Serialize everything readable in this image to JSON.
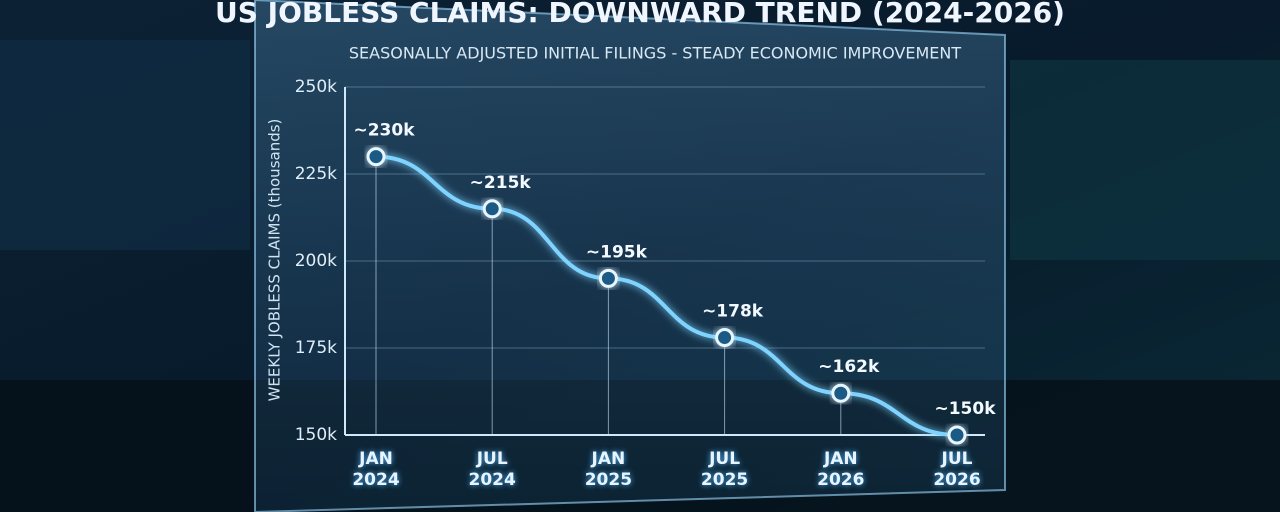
{
  "chart_data": {
    "type": "line",
    "title": "US JOBLESS CLAIMS: DOWNWARD TREND (2024-2026)",
    "subtitle": "SEASONALLY ADJUSTED INITIAL FILINGS - STEADY ECONOMIC IMPROVEMENT",
    "y_label": "WEEKLY JOBLESS CLAIMS (thousands)",
    "categories": [
      "JAN 2024",
      "JUL 2024",
      "JAN 2025",
      "JUL 2025",
      "JAN 2026",
      "JUL 2026"
    ],
    "values": [
      230,
      215,
      195,
      178,
      162,
      150
    ],
    "value_labels": [
      "~230k",
      "~215k",
      "~195k",
      "~178k",
      "~162k",
      "~150k"
    ],
    "color": "#7fd4ff",
    "ylim": [
      150,
      250
    ],
    "yticks": [
      {
        "value": 150,
        "label": "150k"
      },
      {
        "value": 175,
        "label": "175k"
      },
      {
        "value": 200,
        "label": "200k"
      },
      {
        "value": 225,
        "label": "225k"
      },
      {
        "value": 250,
        "label": "250k"
      }
    ],
    "grid": true
  }
}
